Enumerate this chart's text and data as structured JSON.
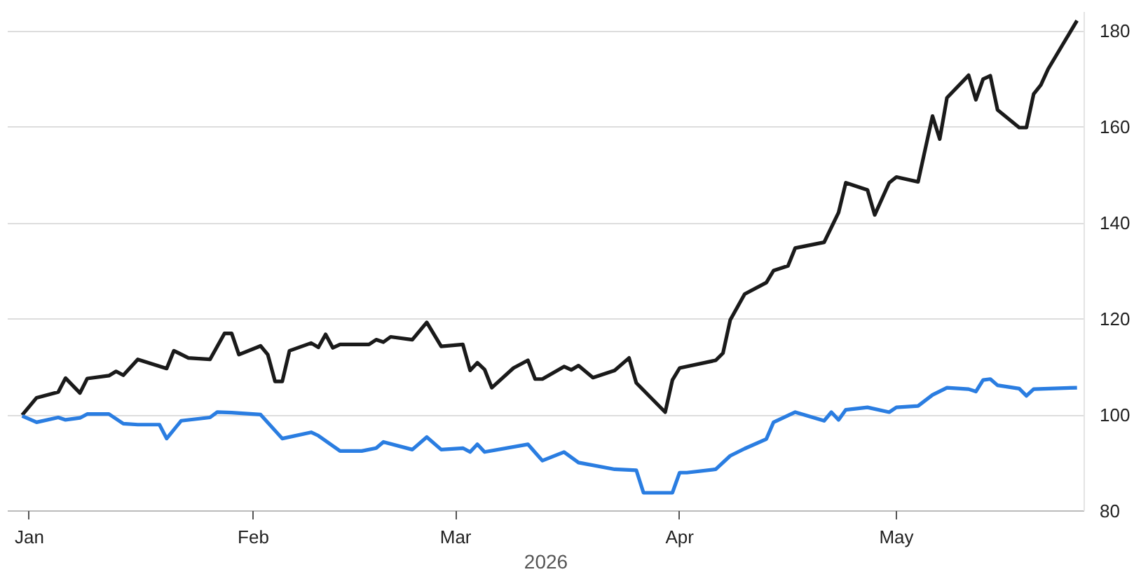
{
  "chart_data": {
    "type": "line",
    "xlabel": "2026",
    "xlim": [
      "2025-12-29",
      "2026-05-27"
    ],
    "xticks": [
      {
        "value": "2026-01-01",
        "label": "Jan"
      },
      {
        "value": "2026-02-01",
        "label": "Feb"
      },
      {
        "value": "2026-03-01",
        "label": "Mar"
      },
      {
        "value": "2026-04-01",
        "label": "Apr"
      },
      {
        "value": "2026-05-01",
        "label": "May"
      }
    ],
    "ylim": [
      80,
      184
    ],
    "yticks": [
      80,
      100,
      120,
      140,
      160,
      180
    ],
    "grid": "y",
    "marker": "none",
    "line_style": "solid",
    "series": [
      {
        "color": "#1a1a1a",
        "x": [
          "2025-12-31",
          "2026-01-02",
          "2026-01-05",
          "2026-01-06",
          "2026-01-08",
          "2026-01-09",
          "2026-01-12",
          "2026-01-13",
          "2026-01-14",
          "2026-01-16",
          "2026-01-20",
          "2026-01-21",
          "2026-01-23",
          "2026-01-26",
          "2026-01-28",
          "2026-01-29",
          "2026-01-30",
          "2026-02-02",
          "2026-02-03",
          "2026-02-04",
          "2026-02-05",
          "2026-02-06",
          "2026-02-09",
          "2026-02-10",
          "2026-02-11",
          "2026-02-12",
          "2026-02-13",
          "2026-02-17",
          "2026-02-18",
          "2026-02-19",
          "2026-02-20",
          "2026-02-23",
          "2026-02-25",
          "2026-02-27",
          "2026-03-02",
          "2026-03-03",
          "2026-03-04",
          "2026-03-05",
          "2026-03-06",
          "2026-03-09",
          "2026-03-11",
          "2026-03-12",
          "2026-03-13",
          "2026-03-16",
          "2026-03-17",
          "2026-03-18",
          "2026-03-20",
          "2026-03-23",
          "2026-03-25",
          "2026-03-26",
          "2026-03-30",
          "2026-03-31",
          "2026-04-01",
          "2026-04-06",
          "2026-04-07",
          "2026-04-08",
          "2026-04-10",
          "2026-04-13",
          "2026-04-14",
          "2026-04-16",
          "2026-04-17",
          "2026-04-21",
          "2026-04-23",
          "2026-04-24",
          "2026-04-27",
          "2026-04-28",
          "2026-04-30",
          "2026-05-01",
          "2026-05-04",
          "2026-05-06",
          "2026-05-07",
          "2026-05-08",
          "2026-05-11",
          "2026-05-12",
          "2026-05-13",
          "2026-05-14",
          "2026-05-15",
          "2026-05-18",
          "2026-05-19",
          "2026-05-20",
          "2026-05-21",
          "2026-05-22",
          "2026-05-26"
        ],
        "values": [
          100,
          103.6,
          104.8,
          107.7,
          104.6,
          107.6,
          108.2,
          109.1,
          108.3,
          111.6,
          109.7,
          113.4,
          111.9,
          111.6,
          117,
          117,
          112.6,
          114.4,
          112.6,
          107,
          107,
          113.4,
          115,
          114.1,
          116.8,
          114,
          114.7,
          114.7,
          115.7,
          115.2,
          116.3,
          115.7,
          119.3,
          114.3,
          114.7,
          109.3,
          110.9,
          109.5,
          105.7,
          109.8,
          111.4,
          107.5,
          107.5,
          110.1,
          109.4,
          110.3,
          107.8,
          109.3,
          111.9,
          106.7,
          100.6,
          107.3,
          109.8,
          111.4,
          112.9,
          119.8,
          125.2,
          127.6,
          130.1,
          131.1,
          134.8,
          136,
          142.2,
          148.4,
          146.9,
          141.7,
          148.4,
          149.6,
          148.6,
          162.3,
          157.5,
          166.1,
          170.8,
          165.7,
          170,
          170.7,
          163.6,
          159.9,
          159.9,
          166.9,
          168.8,
          172.1,
          182.2
        ]
      },
      {
        "color": "#2a7de1",
        "x": [
          "2025-12-31",
          "2026-01-02",
          "2026-01-05",
          "2026-01-06",
          "2026-01-08",
          "2026-01-09",
          "2026-01-12",
          "2026-01-14",
          "2026-01-16",
          "2026-01-19",
          "2026-01-20",
          "2026-01-22",
          "2026-01-26",
          "2026-01-27",
          "2026-01-29",
          "2026-02-02",
          "2026-02-05",
          "2026-02-09",
          "2026-02-10",
          "2026-02-13",
          "2026-02-16",
          "2026-02-18",
          "2026-02-19",
          "2026-02-23",
          "2026-02-25",
          "2026-02-27",
          "2026-03-02",
          "2026-03-03",
          "2026-03-04",
          "2026-03-05",
          "2026-03-11",
          "2026-03-13",
          "2026-03-16",
          "2026-03-18",
          "2026-03-23",
          "2026-03-26",
          "2026-03-27",
          "2026-03-31",
          "2026-04-01",
          "2026-04-02",
          "2026-04-06",
          "2026-04-08",
          "2026-04-10",
          "2026-04-13",
          "2026-04-14",
          "2026-04-17",
          "2026-04-21",
          "2026-04-22",
          "2026-04-23",
          "2026-04-24",
          "2026-04-27",
          "2026-04-30",
          "2026-05-01",
          "2026-05-04",
          "2026-05-06",
          "2026-05-08",
          "2026-05-11",
          "2026-05-12",
          "2026-05-13",
          "2026-05-14",
          "2026-05-15",
          "2026-05-18",
          "2026-05-19",
          "2026-05-20",
          "2026-05-26"
        ],
        "values": [
          99.8,
          98.5,
          99.5,
          99,
          99.4,
          100.2,
          100.2,
          98.2,
          98,
          98,
          95.1,
          98.8,
          99.5,
          100.6,
          100.5,
          100.1,
          95.1,
          96.4,
          95.7,
          92.5,
          92.5,
          93.1,
          94.4,
          92.8,
          95.4,
          92.8,
          93.1,
          92.3,
          93.9,
          92.3,
          93.9,
          90.5,
          92.3,
          90.1,
          88.7,
          88.5,
          83.8,
          83.8,
          88,
          88,
          88.7,
          91.5,
          93,
          95,
          98.5,
          100.6,
          98.8,
          100.6,
          99,
          101.1,
          101.6,
          100.6,
          101.6,
          101.9,
          104.2,
          105.7,
          105.4,
          104.9,
          107.3,
          107.5,
          106.2,
          105.5,
          104,
          105.4,
          105.7
        ]
      }
    ]
  }
}
